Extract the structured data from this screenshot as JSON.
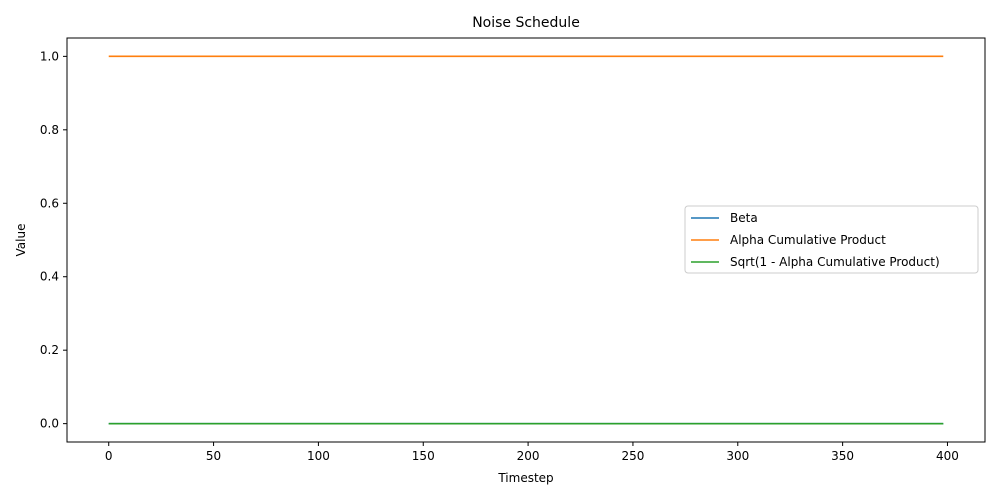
{
  "chart_data": {
    "type": "line",
    "title": "Noise Schedule",
    "xlabel": "Timestep",
    "ylabel": "Value",
    "xlim": [
      -19.9,
      417.9
    ],
    "ylim": [
      -0.05,
      1.05
    ],
    "xticks": [
      0,
      50,
      100,
      150,
      200,
      250,
      300,
      350,
      400
    ],
    "xtick_labels": [
      "0",
      "50",
      "100",
      "150",
      "200",
      "250",
      "300",
      "350",
      "400"
    ],
    "yticks": [
      0.0,
      0.2,
      0.4,
      0.6,
      0.8,
      1.0
    ],
    "ytick_labels": [
      "0.0",
      "0.2",
      "0.4",
      "0.6",
      "0.8",
      "1.0"
    ],
    "grid": false,
    "legend_position": "center-right",
    "series": [
      {
        "name": "Beta",
        "color": "#1f77b4",
        "x": [
          0,
          398
        ],
        "y": [
          0.0,
          0.0
        ]
      },
      {
        "name": "Alpha Cumulative Product",
        "color": "#ff7f0e",
        "x": [
          0,
          398
        ],
        "y": [
          1.0,
          1.0
        ]
      },
      {
        "name": "Sqrt(1 - Alpha Cumulative Product)",
        "color": "#2ca02c",
        "x": [
          0,
          398
        ],
        "y": [
          0.0,
          0.0
        ]
      }
    ]
  }
}
